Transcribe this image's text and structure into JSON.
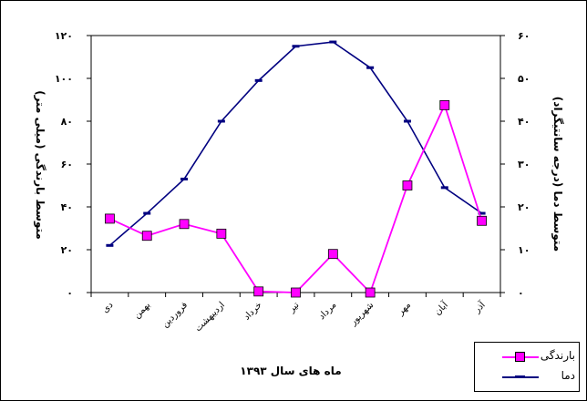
{
  "chart_data": {
    "type": "line",
    "xlabel": "ماه های سال ۱۳۹۳",
    "ylabel_left": "متوسط بارندگی (میلی متر)",
    "ylabel_right": "متوسط دما (درجه سانتیگراد)",
    "categories": [
      "دی",
      "بهمن",
      "فروردین",
      "اردیبهشت",
      "خرداد",
      "تیر",
      "مرداد",
      "شهریور",
      "مهر",
      "آبان",
      "آذر"
    ],
    "ylim_left": [
      0,
      120
    ],
    "ylim_right": [
      0,
      60
    ],
    "yticks_left": [
      "۰",
      "۲۰",
      "۴۰",
      "۶۰",
      "۸۰",
      "۱۰۰",
      "۱۲۰"
    ],
    "yticks_right": [
      "۰",
      "۱۰",
      "۲۰",
      "۳۰",
      "۴۰",
      "۵۰",
      "۶۰"
    ],
    "x_offset": 0.5,
    "series": [
      {
        "name": "بارندگی",
        "axis": "left",
        "color": "#FF00FF",
        "marker": "square",
        "values": [
          34.5,
          26.5,
          32,
          27.5,
          0.5,
          0,
          18,
          0,
          50,
          87.5,
          33.5
        ]
      },
      {
        "name": "دما",
        "axis": "right",
        "color": "#000080",
        "marker": "dash",
        "values": [
          11,
          18.5,
          26.5,
          40,
          49.5,
          57.5,
          58.5,
          52.5,
          40,
          24.5,
          18.5
        ]
      }
    ],
    "legend_position": "bottom-right",
    "grid": false
  }
}
